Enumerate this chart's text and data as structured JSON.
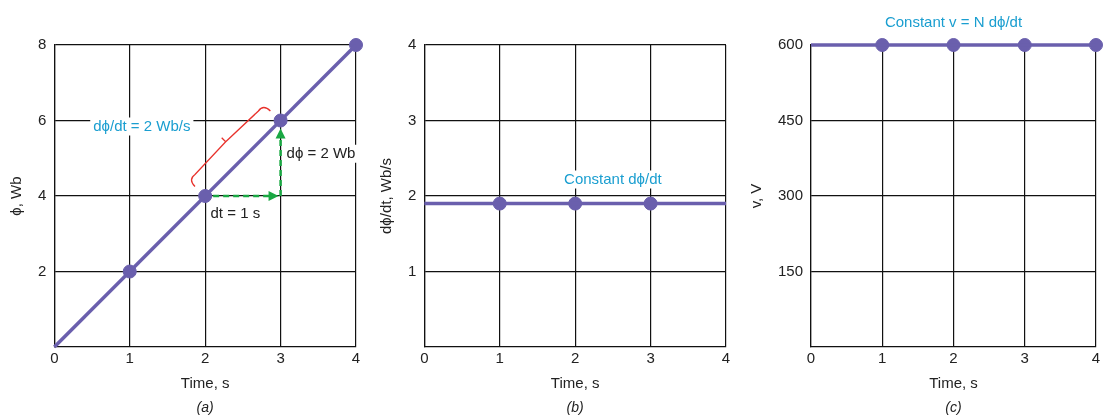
{
  "chart_data": [
    {
      "type": "line",
      "xlabel": "Time, s",
      "ylabel": "ϕ, Wb",
      "xlim": [
        0,
        4
      ],
      "xticks": [
        0,
        1,
        2,
        3,
        4
      ],
      "ylim": [
        0,
        8
      ],
      "yticks": [
        2,
        4,
        6,
        8
      ],
      "grid": true,
      "legend": false,
      "line_style": "solid",
      "series": [
        {
          "type": "line",
          "color": "#6a5fad",
          "x": [
            0,
            4
          ],
          "values": [
            0,
            8
          ]
        },
        {
          "type": "scatter",
          "color": "#6a5fad",
          "x": [
            1,
            2,
            3,
            4
          ],
          "values": [
            2,
            4,
            6,
            8
          ]
        }
      ],
      "annotations": [
        "dϕ/dt = 2 Wb/s",
        "dϕ = 2 Wb",
        "dt = 1 s",
        "(a)"
      ]
    },
    {
      "type": "line",
      "xlabel": "Time, s",
      "ylabel": "dϕ/dt, Wb/s",
      "xlim": [
        0,
        4
      ],
      "xticks": [
        0,
        1,
        2,
        3,
        4
      ],
      "ylim": [
        0,
        4
      ],
      "yticks": [
        1,
        2,
        3,
        4
      ],
      "grid": true,
      "legend": false,
      "line_style": "solid",
      "series": [
        {
          "type": "line",
          "color": "#6a5fad",
          "x": [
            0,
            4
          ],
          "values": [
            1.9,
            1.9
          ]
        },
        {
          "type": "scatter",
          "color": "#6a5fad",
          "x": [
            1,
            2,
            3
          ],
          "values": [
            1.9,
            1.9,
            1.9
          ]
        }
      ],
      "annotations": [
        {
          "text": "Constant dϕ/dt",
          "x": 2.5,
          "y": 1.9
        },
        "(b)"
      ]
    },
    {
      "type": "line",
      "xlabel": "Time, s",
      "ylabel": "v, V",
      "xlim": [
        0,
        4
      ],
      "xticks": [
        0,
        1,
        2,
        3,
        4
      ],
      "ylim": [
        0,
        600
      ],
      "yticks": [
        150,
        300,
        450,
        600
      ],
      "grid": true,
      "legend": false,
      "line_style": "solid",
      "series": [
        {
          "type": "line",
          "color": "#6a5fad",
          "x": [
            0,
            4
          ],
          "values": [
            600,
            600
          ]
        },
        {
          "type": "scatter",
          "color": "#6a5fad",
          "x": [
            1,
            2,
            3,
            4
          ],
          "values": [
            600,
            600,
            600,
            600
          ]
        }
      ],
      "annotations": [
        {
          "text": "Constant v = N dϕ/dt",
          "x": 2,
          "y": 600
        },
        "(c)"
      ]
    }
  ]
}
